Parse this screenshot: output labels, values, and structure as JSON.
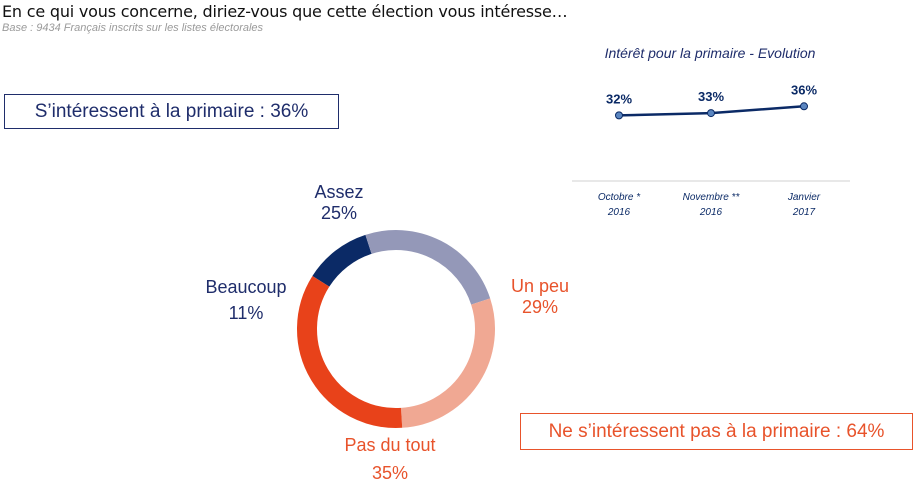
{
  "header": {
    "question": "En ce qui vous concerne, diriez-vous que cette élection vous intéresse…",
    "base": "Base : 9434 Français inscrits sur les listes électorales"
  },
  "summary": {
    "interested": "S’intéressent à la primaire : 36%",
    "not_interested": "Ne s’intéressent pas à la primaire : 64%"
  },
  "colors": {
    "navy": "#1f2d6b",
    "beaucoup": "#0b2a66",
    "assez": "#9498b8",
    "un_peu": "#f0a893",
    "pas_du_tout": "#e8421a",
    "line": "#0b2a66",
    "marker": "#5b86c0"
  },
  "chart_data": [
    {
      "type": "pie",
      "variant": "donut",
      "title": "",
      "labels": [
        "Beaucoup",
        "Assez",
        "Un peu",
        "Pas du tout"
      ],
      "values": [
        11,
        25,
        29,
        35
      ],
      "value_labels": [
        "11%",
        "25%",
        "29%",
        "35%"
      ],
      "colors": [
        "#0b2a66",
        "#9498b8",
        "#f0a893",
        "#e8421a"
      ]
    },
    {
      "type": "line",
      "title": "Intérêt pour la primaire - Evolution",
      "categories": [
        [
          "Octobre *",
          "2016"
        ],
        [
          "Novembre **",
          "2016"
        ],
        [
          "Janvier",
          "2017"
        ]
      ],
      "series": [
        {
          "name": "Intérêt",
          "values": [
            32,
            33,
            36
          ]
        }
      ],
      "value_labels": [
        "32%",
        "33%",
        "36%"
      ],
      "ylim": [
        0,
        100
      ]
    }
  ]
}
